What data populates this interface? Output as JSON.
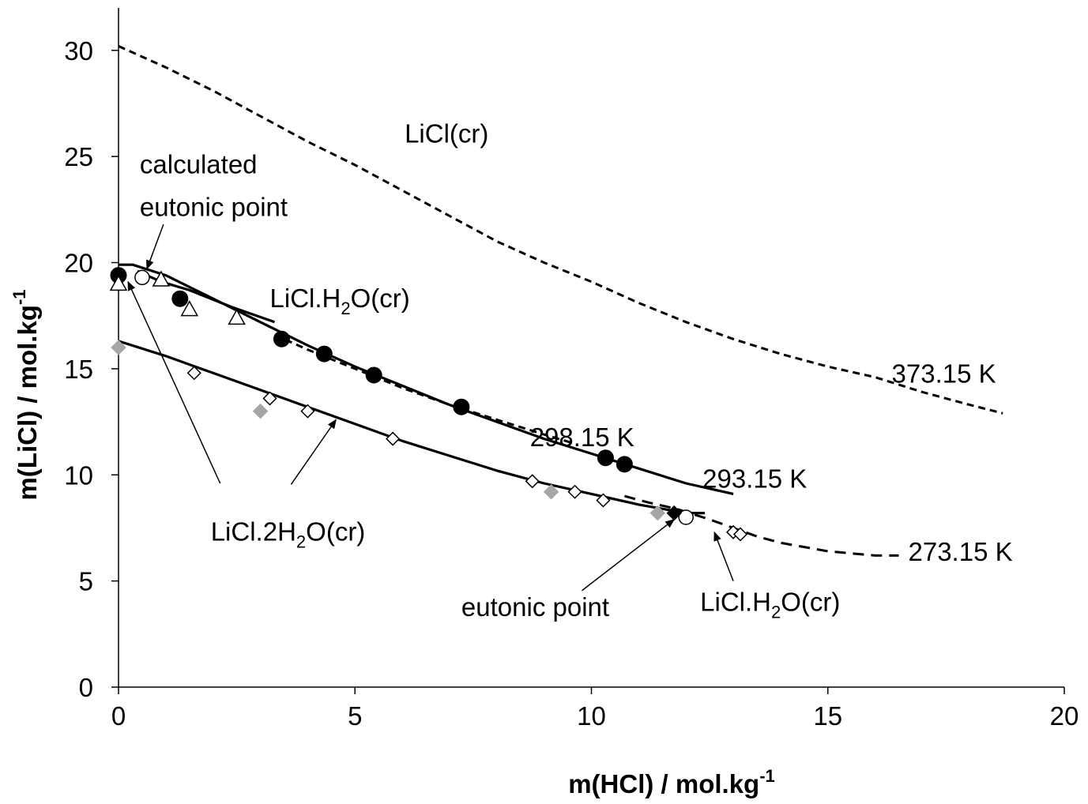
{
  "chart_data": {
    "type": "scatter",
    "xlabel": "m(HCl) / mol.kg",
    "xlabel_sup": "-1",
    "ylabel": "m(LiCl) / mol.kg",
    "ylabel_sup": "-1",
    "xlim": [
      0,
      20
    ],
    "ylim": [
      0,
      32
    ],
    "xticks": [
      0,
      5,
      10,
      15,
      20
    ],
    "yticks": [
      0,
      5,
      10,
      15,
      20,
      25,
      30
    ],
    "grid": false,
    "legend": "none",
    "lines": [
      {
        "label": "373.15 K",
        "style": "dashed",
        "points": [
          [
            0,
            30.2
          ],
          [
            1,
            29.2
          ],
          [
            2,
            28.1
          ],
          [
            3,
            26.9
          ],
          [
            4,
            25.7
          ],
          [
            5,
            24.6
          ],
          [
            6,
            23.4
          ],
          [
            7,
            22.2
          ],
          [
            8,
            21.0
          ],
          [
            9,
            20.0
          ],
          [
            10,
            19.1
          ],
          [
            11,
            18.1
          ],
          [
            12,
            17.2
          ],
          [
            13,
            16.4
          ],
          [
            14,
            15.7
          ],
          [
            15,
            15.1
          ],
          [
            16,
            14.6
          ],
          [
            17,
            13.9
          ],
          [
            18,
            13.3
          ],
          [
            18.7,
            12.9
          ]
        ]
      },
      {
        "label": "298.15 K",
        "style": "dashed",
        "points": [
          [
            3.3,
            16.6
          ],
          [
            4,
            15.9
          ],
          [
            5,
            15.0
          ],
          [
            6,
            14.1
          ],
          [
            7,
            13.3
          ],
          [
            8,
            12.6
          ],
          [
            9,
            11.9
          ],
          [
            9.6,
            11.5
          ]
        ]
      },
      {
        "label": "293.15 K",
        "style": "solid",
        "points": [
          [
            0,
            19.9
          ],
          [
            0.3,
            19.9
          ],
          [
            1,
            19.4
          ],
          [
            2,
            18.3
          ],
          [
            3,
            17.2
          ],
          [
            4,
            16.1
          ],
          [
            5,
            15.1
          ],
          [
            6,
            14.2
          ],
          [
            7,
            13.3
          ],
          [
            8,
            12.5
          ],
          [
            9,
            11.7
          ],
          [
            10,
            11.0
          ],
          [
            11,
            10.3
          ],
          [
            12,
            9.6
          ],
          [
            13,
            9.1
          ]
        ]
      },
      {
        "label": "273.15 K",
        "style": "solid",
        "points": [
          [
            0,
            16.3
          ],
          [
            1,
            15.6
          ],
          [
            2,
            14.8
          ],
          [
            3,
            14.0
          ],
          [
            4,
            13.2
          ],
          [
            5,
            12.4
          ],
          [
            6,
            11.6
          ],
          [
            7,
            10.9
          ],
          [
            8,
            10.2
          ],
          [
            9,
            9.6
          ],
          [
            10,
            9.1
          ],
          [
            11,
            8.6
          ],
          [
            12,
            8.2
          ],
          [
            12.4,
            8.2
          ]
        ]
      },
      {
        "label": "273.15 K",
        "style": "dashed",
        "points": [
          [
            10.7,
            9.0
          ],
          [
            11.2,
            8.7
          ],
          [
            11.8,
            8.4
          ],
          [
            12.5,
            7.9
          ],
          [
            13,
            7.5
          ],
          [
            13.5,
            7.1
          ],
          [
            14,
            6.8
          ],
          [
            14.5,
            6.6
          ],
          [
            15,
            6.4
          ],
          [
            15.5,
            6.3
          ],
          [
            16,
            6.2
          ],
          [
            16.5,
            6.2
          ]
        ]
      },
      {
        "label": "293.15 K",
        "style": "solid",
        "points": [
          [
            0.4,
            19.6
          ],
          [
            0.9,
            19.1
          ],
          [
            1.5,
            18.7
          ],
          [
            2.4,
            17.9
          ],
          [
            3.3,
            17.2
          ]
        ]
      }
    ],
    "series": [
      {
        "marker": "filled-circle",
        "color": "#000000",
        "points": [
          [
            0,
            19.4
          ],
          [
            1.3,
            18.3
          ],
          [
            3.45,
            16.4
          ],
          [
            4.35,
            15.7
          ],
          [
            5.4,
            14.7
          ],
          [
            7.25,
            13.2
          ],
          [
            10.3,
            10.8
          ],
          [
            10.7,
            10.5
          ]
        ]
      },
      {
        "marker": "open-circle",
        "color": "#000000",
        "points": [
          [
            0.5,
            19.3
          ],
          [
            12.0,
            8.0
          ]
        ]
      },
      {
        "marker": "open-triangle",
        "color": "#000000",
        "points": [
          [
            0,
            19.0
          ],
          [
            0.9,
            19.2
          ],
          [
            1.5,
            17.8
          ],
          [
            2.5,
            17.4
          ]
        ]
      },
      {
        "marker": "open-diamond",
        "color": "#000000",
        "points": [
          [
            1.6,
            14.8
          ],
          [
            3.2,
            13.6
          ],
          [
            4.0,
            13.0
          ],
          [
            5.8,
            11.7
          ],
          [
            8.75,
            9.7
          ],
          [
            9.65,
            9.2
          ],
          [
            10.25,
            8.8
          ],
          [
            13.0,
            7.3
          ],
          [
            13.15,
            7.2
          ]
        ]
      },
      {
        "marker": "filled-diamond",
        "color": "#a6a6a6",
        "points": [
          [
            0,
            16.0
          ],
          [
            3.0,
            13.0
          ],
          [
            9.15,
            9.2
          ],
          [
            11.4,
            8.2
          ]
        ]
      },
      {
        "marker": "filled-diamond",
        "color": "#000000",
        "points": [
          [
            11.75,
            8.2
          ]
        ]
      }
    ],
    "annotations": [
      {
        "id": "licl-cr",
        "parts": [
          [
            "LiCl(cr)",
            ""
          ]
        ],
        "x": 6.05,
        "y": 25.65
      },
      {
        "id": "calc-eutonic-1",
        "parts": [
          [
            "calculated",
            ""
          ]
        ],
        "x": 0.45,
        "y": 24.2
      },
      {
        "id": "calc-eutonic-2",
        "parts": [
          [
            "eutonic point",
            ""
          ]
        ],
        "x": 0.45,
        "y": 22.2
      },
      {
        "id": "licl-h2o-top",
        "parts": [
          [
            "LiCl.H",
            ""
          ],
          [
            "2",
            "sub"
          ],
          [
            "O(cr)",
            ""
          ]
        ],
        "x": 3.2,
        "y": 17.9
      },
      {
        "id": "t373",
        "parts": [
          [
            "373.15 K",
            ""
          ]
        ],
        "x": 16.35,
        "y": 14.35
      },
      {
        "id": "t298",
        "parts": [
          [
            "298.15 K",
            ""
          ]
        ],
        "x": 8.7,
        "y": 11.35
      },
      {
        "id": "t293",
        "parts": [
          [
            "293.15 K",
            ""
          ]
        ],
        "x": 12.35,
        "y": 9.4
      },
      {
        "id": "t273",
        "parts": [
          [
            "273.15 K",
            ""
          ]
        ],
        "x": 16.7,
        "y": 5.95
      },
      {
        "id": "licl-2h2o",
        "parts": [
          [
            "LiCl.2H",
            ""
          ],
          [
            "2",
            "sub"
          ],
          [
            "O(cr)",
            ""
          ]
        ],
        "x": 1.95,
        "y": 6.9
      },
      {
        "id": "eutonic-point",
        "parts": [
          [
            "eutonic point",
            ""
          ]
        ],
        "x": 7.25,
        "y": 3.35
      },
      {
        "id": "licl-h2o-bottom",
        "parts": [
          [
            "LiCl.H",
            ""
          ],
          [
            "2",
            "sub"
          ],
          [
            "O(cr)",
            ""
          ]
        ],
        "x": 12.3,
        "y": 3.6
      }
    ],
    "arrows": [
      {
        "from": [
          0.95,
          21.8
        ],
        "to": [
          0.6,
          19.7
        ]
      },
      {
        "from": [
          2.15,
          9.6
        ],
        "to": [
          0.2,
          19.1
        ]
      },
      {
        "from": [
          3.65,
          9.55
        ],
        "to": [
          4.6,
          12.6
        ]
      },
      {
        "from": [
          9.8,
          4.55
        ],
        "to": [
          11.75,
          7.9
        ]
      },
      {
        "from": [
          13.0,
          5.0
        ],
        "to": [
          12.6,
          7.3
        ]
      }
    ]
  }
}
